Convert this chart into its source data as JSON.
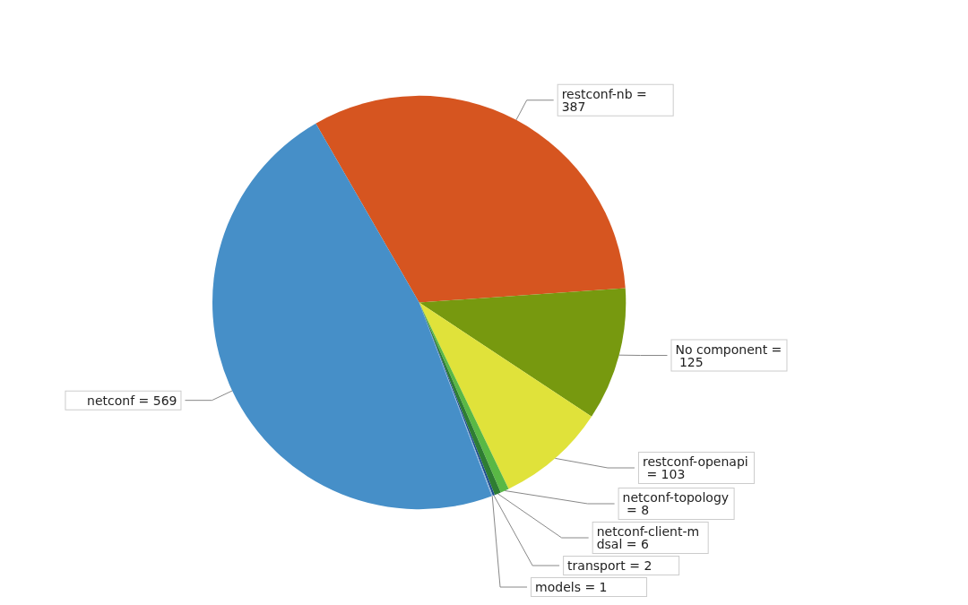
{
  "chart_data": {
    "type": "pie",
    "categories": [
      "restconf-nb = 387",
      "No component = 125",
      "restconf-openapi = 103",
      "netconf-topology = 8",
      "netconf-client-mdsal = 6",
      "transport = 2",
      "models = 1",
      "netconf = 569"
    ],
    "values": [
      387,
      125,
      103,
      8,
      6,
      2,
      1,
      569
    ],
    "colors": [
      "#d65520",
      "#77990f",
      "#e0e23a",
      "#59b845",
      "#2e7d32",
      "#1e4e8c",
      "#8fb0d8",
      "#468fc8"
    ],
    "legend": false
  }
}
